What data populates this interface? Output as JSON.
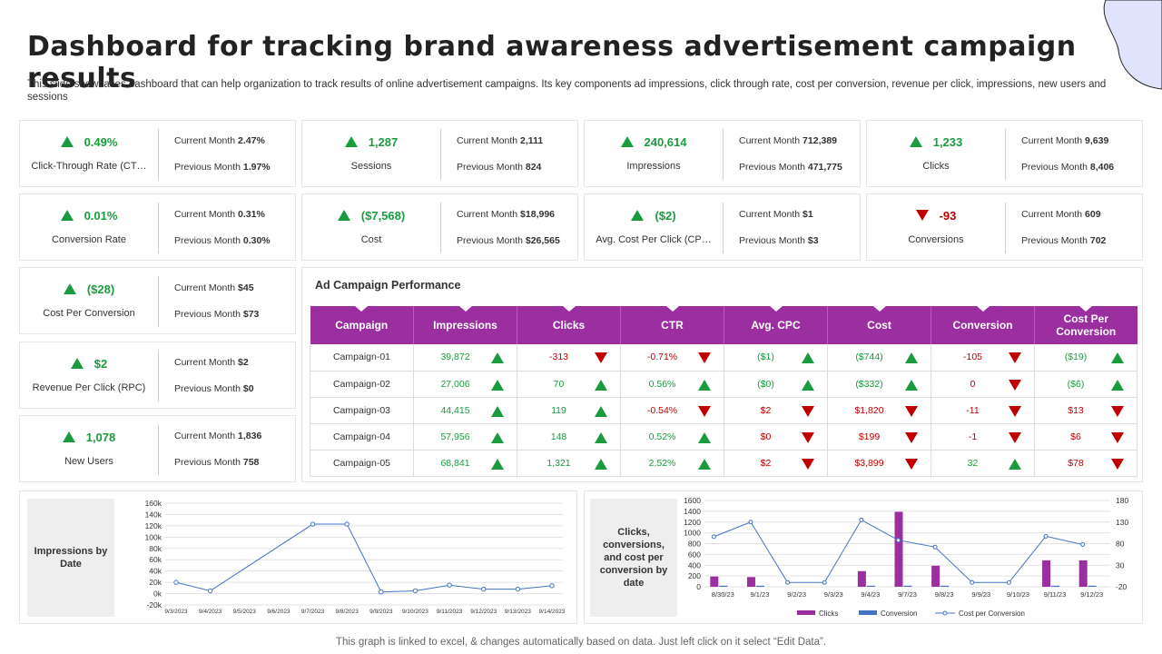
{
  "title": "Dashboard for tracking brand awareness advertisement campaign results",
  "subtitle": "This slide showcases dashboard that can help organization to track results of online advertisement campaigns. Its key components ad impressions, click through rate, cost per conversion, revenue per click, impressions, new users and sessions",
  "kpis": [
    {
      "value": "0.49%",
      "trend": "up",
      "label": "Click-Through Rate (CT…",
      "current_label": "Current Month",
      "current": "2.47%",
      "previous_label": "Previous Month",
      "previous": "1.97%"
    },
    {
      "value": "1,287",
      "trend": "up",
      "label": "Sessions",
      "current_label": "Current Month",
      "current": "2,111",
      "previous_label": "Previous Month",
      "previous": "824"
    },
    {
      "value": "240,614",
      "trend": "up",
      "label": "Impressions",
      "current_label": "Current Month",
      "current": "712,389",
      "previous_label": "Previous Month",
      "previous": "471,775"
    },
    {
      "value": "1,233",
      "trend": "up",
      "label": "Clicks",
      "current_label": "Current Month",
      "current": "9,639",
      "previous_label": "Previous Month",
      "previous": "8,406"
    },
    {
      "value": "0.01%",
      "trend": "up",
      "label": "Conversion Rate",
      "current_label": "Current Month",
      "current": "0.31%",
      "previous_label": "Previous Month",
      "previous": "0.30%"
    },
    {
      "value": "($7,568)",
      "trend": "up",
      "label": "Cost",
      "current_label": "Current Month",
      "current": "$18,996",
      "previous_label": "Previous Month",
      "previous": "$26,565"
    },
    {
      "value": "($2)",
      "trend": "up",
      "label": "Avg. Cost Per Click (CP…",
      "current_label": "Current Month",
      "current": "$1",
      "previous_label": "Previous Month",
      "previous": "$3"
    },
    {
      "value": "-93",
      "trend": "down",
      "label": "Conversions",
      "current_label": "Current Month",
      "current": "609",
      "previous_label": "Previous Month",
      "previous": "702"
    },
    {
      "value": "($28)",
      "trend": "up",
      "label": "Cost Per Conversion",
      "current_label": "Current Month",
      "current": "$45",
      "previous_label": "Previous Month",
      "previous": "$73"
    },
    {
      "value": "$2",
      "trend": "up",
      "label": "Revenue Per Click (RPC)",
      "current_label": "Current Month",
      "current": "$2",
      "previous_label": "Previous Month",
      "previous": "$0"
    },
    {
      "value": "1,078",
      "trend": "up",
      "label": "New Users",
      "current_label": "Current Month",
      "current": "1,836",
      "previous_label": "Previous Month",
      "previous": "758"
    }
  ],
  "performance": {
    "title": "Ad Campaign Performance",
    "headers": [
      "Campaign",
      "Impressions",
      "Clicks",
      "CTR",
      "Avg. CPC",
      "Cost",
      "Conversion",
      "Cost Per Conversion"
    ],
    "rows": [
      {
        "name": "Campaign-01",
        "cells": [
          {
            "v": "39,872",
            "t": "up"
          },
          {
            "v": "-313",
            "t": "down"
          },
          {
            "v": "-0.71%",
            "t": "down"
          },
          {
            "v": "($1)",
            "t": "up"
          },
          {
            "v": "($744)",
            "t": "up"
          },
          {
            "v": "-105",
            "t": "down"
          },
          {
            "v": "($19)",
            "t": "up"
          }
        ]
      },
      {
        "name": "Campaign-02",
        "cells": [
          {
            "v": "27,006",
            "t": "up"
          },
          {
            "v": "70",
            "t": "up"
          },
          {
            "v": "0.56%",
            "t": "up"
          },
          {
            "v": "($0)",
            "t": "up"
          },
          {
            "v": "($332)",
            "t": "up"
          },
          {
            "v": "0",
            "t": "down"
          },
          {
            "v": "($6)",
            "t": "up"
          }
        ]
      },
      {
        "name": "Campaign-03",
        "cells": [
          {
            "v": "44,415",
            "t": "up"
          },
          {
            "v": "119",
            "t": "up"
          },
          {
            "v": "-0.54%",
            "t": "down"
          },
          {
            "v": "$2",
            "t": "down"
          },
          {
            "v": "$1,820",
            "t": "down"
          },
          {
            "v": "-11",
            "t": "down"
          },
          {
            "v": "$13",
            "t": "down"
          }
        ]
      },
      {
        "name": "Campaign-04",
        "cells": [
          {
            "v": "57,956",
            "t": "up"
          },
          {
            "v": "148",
            "t": "up"
          },
          {
            "v": "0.52%",
            "t": "up"
          },
          {
            "v": "$0",
            "t": "down"
          },
          {
            "v": "$199",
            "t": "down"
          },
          {
            "v": "-1",
            "t": "down"
          },
          {
            "v": "$6",
            "t": "down"
          }
        ]
      },
      {
        "name": "Campaign-05",
        "cells": [
          {
            "v": "68,841",
            "t": "up"
          },
          {
            "v": "1,321",
            "t": "up"
          },
          {
            "v": "2.52%",
            "t": "up"
          },
          {
            "v": "$2",
            "t": "down"
          },
          {
            "v": "$3,899",
            "t": "down"
          },
          {
            "v": "32",
            "t": "up"
          },
          {
            "v": "$78",
            "t": "down"
          }
        ]
      }
    ]
  },
  "colors": {
    "green": "#1a9c3e",
    "red": "#c00000",
    "purple": "#9b2fa0",
    "blue": "#4472c4"
  },
  "chart_data": [
    {
      "type": "line",
      "title": "Impressions by Date",
      "x": [
        "9/3/2023",
        "9/4/2023",
        "9/5/2023",
        "9/6/2023",
        "9/7/2023",
        "9/8/2023",
        "9/9/2023",
        "9/10/2023",
        "9/11/2023",
        "9/12/2023",
        "9/13/2023",
        "9/14/2023"
      ],
      "series": [
        {
          "name": "Impressions",
          "values": [
            20000,
            5000,
            null,
            null,
            123000,
            123000,
            3000,
            5000,
            15000,
            8000,
            8000,
            14000
          ]
        }
      ],
      "yticks": [
        "160k",
        "140k",
        "120k",
        "100k",
        "80k",
        "60k",
        "40k",
        "20k",
        "0k",
        "-20k"
      ],
      "ylim": [
        -20000,
        160000
      ]
    },
    {
      "type": "bar",
      "title": "Clicks, conversions, and cost per conversion by date",
      "categories": [
        "8/30/23",
        "9/1/23",
        "9/2/23",
        "9/3/23",
        "9/4/23",
        "9/7/23",
        "9/8/23",
        "9/9/23",
        "9/10/23",
        "9/11/23",
        "9/12/23"
      ],
      "series": [
        {
          "name": "Clicks",
          "kind": "bar",
          "axis": "left",
          "values": [
            190,
            180,
            0,
            0,
            290,
            1390,
            390,
            0,
            0,
            490,
            490
          ]
        },
        {
          "name": "Conversion",
          "kind": "bar",
          "axis": "left",
          "values": [
            20,
            20,
            0,
            0,
            20,
            20,
            20,
            0,
            0,
            20,
            20
          ]
        },
        {
          "name": "Cost per Conversion",
          "kind": "line",
          "axis": "right",
          "values": [
            96,
            130,
            -10,
            -10,
            135,
            88,
            72,
            -10,
            -10,
            97,
            78
          ]
        }
      ],
      "yticks_left": [
        "1600",
        "1400",
        "1200",
        "1000",
        "800",
        "600",
        "400",
        "200",
        "0"
      ],
      "ylim_left": [
        0,
        1600
      ],
      "yticks_right": [
        "180",
        "130",
        "80",
        "30",
        "-20"
      ],
      "ylim_right": [
        -20,
        180
      ]
    }
  ],
  "footer": "This graph is linked to excel, & changes automatically based on data. Just left click on it select “Edit Data”."
}
